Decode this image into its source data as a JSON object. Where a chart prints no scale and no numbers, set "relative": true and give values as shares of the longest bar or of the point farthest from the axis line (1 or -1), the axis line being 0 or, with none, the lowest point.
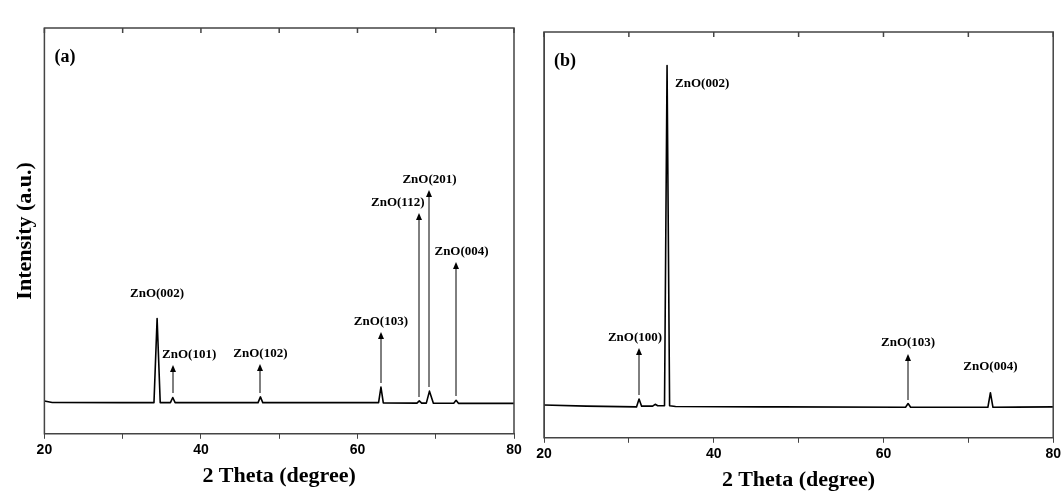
{
  "chart_data": [
    {
      "type": "line",
      "xlabel": "2 Theta (degree)",
      "ylabel": "Intensity (a.u.)",
      "relative": true,
      "xlim": [
        20,
        80
      ],
      "xticks": [
        20,
        {
          "value": 30,
          "label": null
        },
        40,
        {
          "value": 50,
          "label": null
        },
        60,
        {
          "value": 70,
          "label": null
        },
        80
      ],
      "grid": false,
      "legend": false,
      "marker": "none",
      "line_style": "solid",
      "tick_labels": "x",
      "series": [
        {
          "color": "#000000",
          "x": [
            20,
            21,
            30,
            34.0,
            34.4,
            34.8,
            36.1,
            36.4,
            36.7,
            47.3,
            47.6,
            47.9,
            62.7,
            63.0,
            63.3,
            67.6,
            67.9,
            68.2,
            68.8,
            69.2,
            69.7,
            72.3,
            72.6,
            72.9,
            80
          ],
          "values": [
            0.285,
            0.272,
            0.27,
            0.27,
            1.0,
            0.27,
            0.27,
            0.315,
            0.27,
            0.27,
            0.32,
            0.27,
            0.27,
            0.405,
            0.268,
            0.266,
            0.285,
            0.266,
            0.266,
            0.37,
            0.266,
            0.265,
            0.29,
            0.264,
            0.264
          ]
        }
      ],
      "annotations": [
        "(a)",
        {
          "text": "ZnO(002)",
          "x": 34.4,
          "y": 1.0
        },
        {
          "text": "ZnO(101)",
          "x": 36.4,
          "y": 0.315
        },
        {
          "text": "ZnO(102)",
          "x": 47.6,
          "y": 0.32
        },
        {
          "text": "ZnO(103)",
          "x": 63.0,
          "y": 0.405
        },
        {
          "text": "ZnO(112)",
          "x": 67.9,
          "y": 0.285
        },
        {
          "text": "ZnO(201)",
          "x": 69.2,
          "y": 0.37
        },
        {
          "text": "ZnO(004)",
          "x": 72.6,
          "y": 0.29
        }
      ]
    },
    {
      "type": "line",
      "xlabel": "2 Theta (degree)",
      "relative": true,
      "xlim": [
        20,
        80
      ],
      "xticks": [
        20,
        {
          "value": 30,
          "label": null
        },
        40,
        {
          "value": 50,
          "label": null
        },
        60,
        {
          "value": 70,
          "label": null
        },
        80
      ],
      "grid": false,
      "legend": false,
      "marker": "none",
      "line_style": "solid",
      "tick_labels": "x",
      "series": [
        {
          "color": "#000000",
          "x": [
            20,
            25,
            30.9,
            31.2,
            31.5,
            32.8,
            33.1,
            33.4,
            34.2,
            34.5,
            34.8,
            35.5,
            47.8,
            62.6,
            62.9,
            63.2,
            72.3,
            72.6,
            72.9,
            80
          ],
          "values": [
            0.088,
            0.085,
            0.083,
            0.104,
            0.085,
            0.085,
            0.09,
            0.086,
            0.086,
            1.0,
            0.086,
            0.084,
            0.083,
            0.082,
            0.092,
            0.082,
            0.082,
            0.121,
            0.082,
            0.083
          ]
        }
      ],
      "annotations": [
        "(b)",
        {
          "text": "ZnO(100)",
          "x": 31.2,
          "y": 0.104
        },
        {
          "text": "ZnO(002)",
          "x": 34.5,
          "y": 1.0
        },
        {
          "text": "ZnO(103)",
          "x": 62.9,
          "y": 0.092
        },
        {
          "text": "ZnO(004)",
          "x": 72.6,
          "y": 0.121
        }
      ]
    }
  ]
}
